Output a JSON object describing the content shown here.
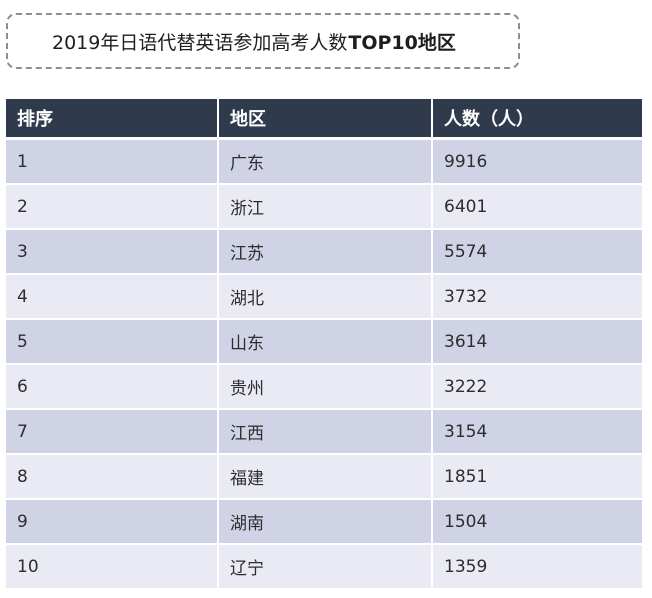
{
  "title": {
    "normal": "2019年日语代替英语参加高考人数",
    "bold": "TOP10地区"
  },
  "chart_data": {
    "type": "table",
    "title": "2019年日语代替英语参加高考人数TOP10地区",
    "columns": [
      "排序",
      "地区",
      "人数（人）"
    ],
    "rows": [
      [
        "1",
        "广东",
        "9916"
      ],
      [
        "2",
        "浙江",
        "6401"
      ],
      [
        "3",
        "江苏",
        "5574"
      ],
      [
        "4",
        "湖北",
        "3732"
      ],
      [
        "5",
        "山东",
        "3614"
      ],
      [
        "6",
        "贵州",
        "3222"
      ],
      [
        "7",
        "江西",
        "3154"
      ],
      [
        "8",
        "福建",
        "1851"
      ],
      [
        "9",
        "湖南",
        "1504"
      ],
      [
        "10",
        "辽宁",
        "1359"
      ]
    ]
  },
  "colors": {
    "header_bg": "#303a4d",
    "row_odd": "#d0d3e6",
    "row_even": "#e9eaf3"
  }
}
